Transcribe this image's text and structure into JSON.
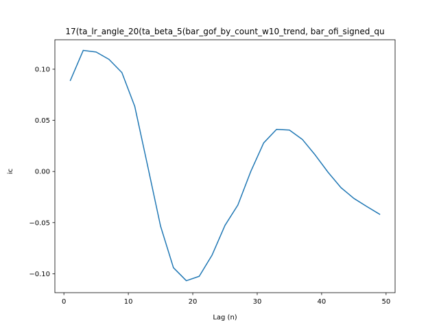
{
  "chart_data": {
    "type": "line",
    "title": "17(ta_lr_angle_20(ta_beta_5(bar_gof_by_count_w10_trend, bar_ofi_signed_qu",
    "xlabel": "Lag (n)",
    "ylabel": "ic",
    "xlim": [
      -1.4,
      51.4
    ],
    "ylim": [
      -0.1185,
      0.1288
    ],
    "xticks": [
      0,
      10,
      20,
      30,
      40,
      50
    ],
    "yticks": [
      -0.1,
      -0.05,
      0.0,
      0.05,
      0.1
    ],
    "xtick_labels": [
      "0",
      "10",
      "20",
      "30",
      "40",
      "50"
    ],
    "ytick_labels": [
      "−0.10",
      "−0.05",
      "0.00",
      "0.05",
      "0.10"
    ],
    "grid": false,
    "series": [
      {
        "color": "#1f77b4",
        "x": [
          1,
          3,
          5,
          7,
          9,
          11,
          13,
          15,
          17,
          19,
          21,
          23,
          25,
          27,
          29,
          31,
          33,
          35,
          37,
          39,
          41,
          43,
          45,
          47,
          49
        ],
        "y": [
          0.089,
          0.1184,
          0.1168,
          0.1096,
          0.0967,
          0.0636,
          0.0054,
          -0.0534,
          -0.0941,
          -0.1068,
          -0.1025,
          -0.0817,
          -0.0527,
          -0.0328,
          0.0,
          0.0279,
          0.0412,
          0.0405,
          0.0314,
          0.0161,
          -0.0008,
          -0.0158,
          -0.0263,
          -0.0342,
          -0.0418
        ]
      }
    ]
  }
}
